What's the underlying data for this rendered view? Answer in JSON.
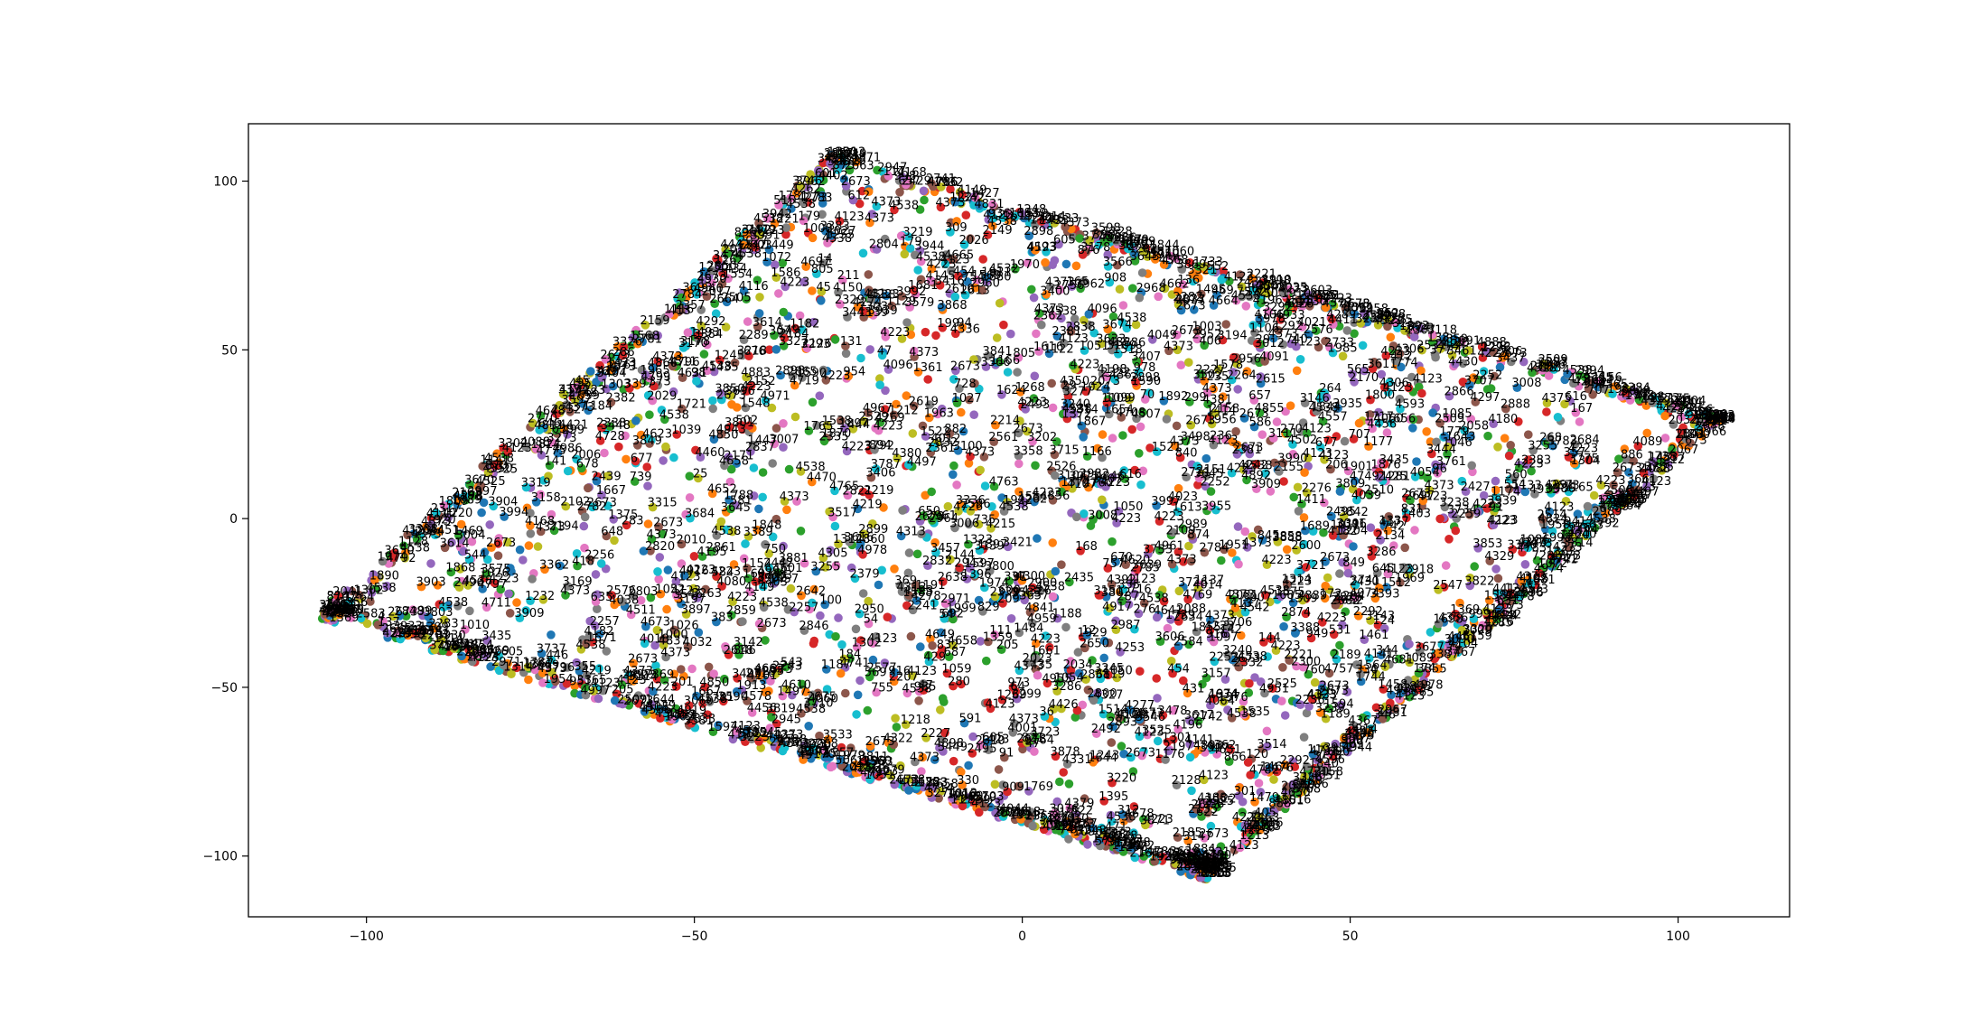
{
  "chart_data": {
    "type": "scatter",
    "title": "",
    "xlabel": "",
    "ylabel": "",
    "xlim": [
      -118,
      117
    ],
    "ylim": [
      -118,
      117
    ],
    "xticks": [
      -100,
      -50,
      0,
      50,
      100
    ],
    "yticks": [
      -100,
      -50,
      0,
      50,
      100
    ],
    "grid": false,
    "legend": "none",
    "point_shape": "parallelogram cloud of labeled points",
    "corners": {
      "left": [
        -108,
        -29
      ],
      "top": [
        -33,
        107
      ],
      "right": [
        107,
        30
      ],
      "bottom": [
        28,
        -107
      ]
    },
    "label_range": [
      0,
      4999
    ],
    "example_labels": [
      "4373",
      "4273",
      "4223",
      "4323",
      "4123",
      "4073",
      "2673",
      "2823",
      "4538",
      "4409"
    ],
    "colors": [
      "#1f77b4",
      "#ff7f0e",
      "#2ca02c",
      "#d62728",
      "#9467bd",
      "#8c564b",
      "#e377c2",
      "#7f7f7f",
      "#bcbd22",
      "#17becf"
    ]
  }
}
